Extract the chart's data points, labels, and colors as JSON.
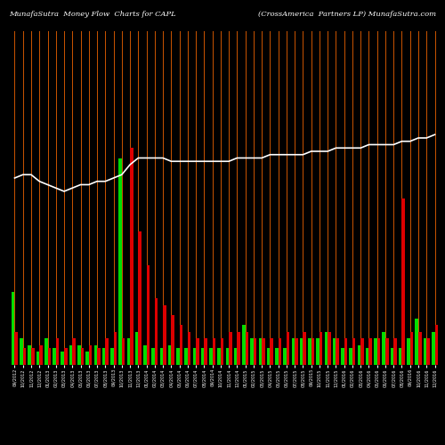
{
  "title_left": "MunafaSutra  Money Flow  Charts for CAPL",
  "title_right": "(CrossAmerica  Partners LP) MunafaSutra.com",
  "background_color": "#000000",
  "orange_line_color": "#cc5500",
  "white_line_color": "#ffffff",
  "green_color": "#00dd00",
  "red_color": "#dd0000",
  "dates": [
    "09/2012",
    "10/2012",
    "11/2012",
    "12/2012",
    "01/2013",
    "02/2013",
    "03/2013",
    "04/2013",
    "05/2013",
    "06/2013",
    "07/2013",
    "08/2013",
    "09/2013",
    "10/2013",
    "11/2013",
    "12/2013",
    "01/2014",
    "02/2014",
    "03/2014",
    "04/2014",
    "05/2014",
    "06/2014",
    "07/2014",
    "08/2014",
    "09/2014",
    "10/2014",
    "11/2014",
    "12/2014",
    "01/2015",
    "02/2015",
    "03/2015",
    "04/2015",
    "05/2015",
    "06/2015",
    "07/2015",
    "08/2015",
    "09/2015",
    "10/2015",
    "11/2015",
    "12/2015",
    "01/2016",
    "02/2016",
    "03/2016",
    "04/2016",
    "05/2016",
    "06/2016",
    "07/2016",
    "08/2016",
    "09/2016",
    "10/2016",
    "11/2016",
    "12/2016"
  ],
  "green_vals": [
    22,
    8,
    6,
    4,
    8,
    5,
    4,
    6,
    6,
    4,
    6,
    5,
    5,
    62,
    8,
    10,
    6,
    5,
    5,
    6,
    5,
    5,
    5,
    5,
    5,
    5,
    5,
    5,
    12,
    8,
    8,
    5,
    5,
    5,
    8,
    8,
    8,
    8,
    10,
    8,
    5,
    5,
    6,
    5,
    8,
    10,
    5,
    5,
    8,
    14,
    8,
    10
  ],
  "red_vals": [
    10,
    5,
    5,
    6,
    5,
    8,
    5,
    8,
    5,
    6,
    5,
    8,
    10,
    8,
    65,
    40,
    30,
    20,
    18,
    15,
    12,
    10,
    8,
    8,
    8,
    8,
    10,
    10,
    10,
    8,
    8,
    8,
    8,
    10,
    8,
    10,
    8,
    10,
    10,
    8,
    8,
    8,
    8,
    8,
    8,
    8,
    8,
    50,
    10,
    10,
    8,
    12
  ],
  "white_line_y": [
    56,
    57,
    57,
    55,
    54,
    53,
    52,
    53,
    54,
    54,
    55,
    55,
    56,
    57,
    60,
    62,
    62,
    62,
    62,
    61,
    61,
    61,
    61,
    61,
    61,
    61,
    61,
    62,
    62,
    62,
    62,
    63,
    63,
    63,
    63,
    63,
    64,
    64,
    64,
    65,
    65,
    65,
    65,
    66,
    66,
    66,
    66,
    67,
    67,
    68,
    68,
    69
  ]
}
